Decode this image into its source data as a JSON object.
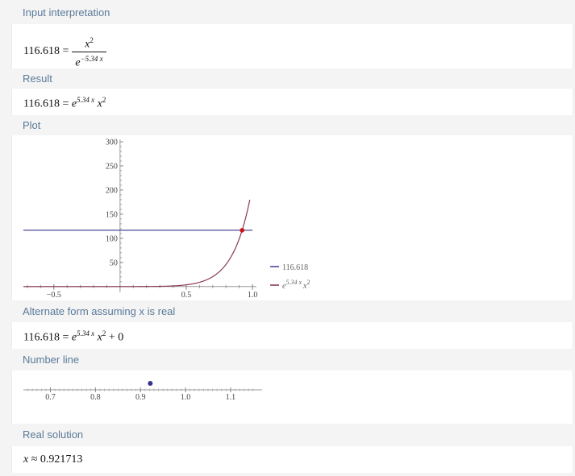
{
  "pods": {
    "input": {
      "title": "Input interpretation",
      "lhs": "116.618 =",
      "numerator_var": "x",
      "numerator_exp": "2",
      "denominator_base": "e",
      "denominator_exp": "−5.34 x"
    },
    "result": {
      "title": "Result",
      "lhs": "116.618 =",
      "base": "e",
      "exp": "5.34 x",
      "var": "x",
      "var_exp": "2"
    },
    "plot": {
      "title": "Plot"
    },
    "alternate": {
      "title": "Alternate form assuming x is real",
      "lhs": "116.618 =",
      "base": "e",
      "exp": "5.34 x",
      "var": "x",
      "var_exp": "2",
      "tail": " + 0"
    },
    "numberline": {
      "title": "Number line"
    },
    "solution": {
      "title": "Real solution",
      "var": "x",
      "approx": " ≈ 0.921713"
    }
  },
  "chart_data": [
    {
      "type": "line",
      "xlim": [
        -0.73,
        1.03
      ],
      "ylim": [
        -12,
        305
      ],
      "x_ticks": [
        {
          "value": -0.5,
          "label": "−0.5"
        },
        {
          "value": 0.5,
          "label": "0.5"
        },
        {
          "value": 1.0,
          "label": "1.0"
        }
      ],
      "y_ticks": [
        {
          "value": 50,
          "label": "50"
        },
        {
          "value": 100,
          "label": "100"
        },
        {
          "value": 150,
          "label": "150"
        },
        {
          "value": 200,
          "label": "200"
        },
        {
          "value": 250,
          "label": "250"
        },
        {
          "value": 300,
          "label": "300"
        }
      ],
      "series": [
        {
          "name": "116.618",
          "color": "#4a4a9a",
          "kind": "constant",
          "value": 116.618,
          "x_range": [
            -0.73,
            1.0
          ]
        },
        {
          "name": "e^(5.34 x) x^2",
          "color": "#8a3a5a",
          "kind": "function",
          "x_range": [
            -0.73,
            0.98
          ]
        }
      ],
      "legend": {
        "position": "right",
        "entries": [
          {
            "label": "116.618",
            "color": "#4a4a9a"
          },
          {
            "base": "e",
            "exp": "5.34 x",
            "var": "x",
            "var_exp": "2",
            "color": "#8a3a5a"
          }
        ]
      },
      "intersection": {
        "x": 0.921713,
        "y": 116.618,
        "color": "#d01010"
      }
    },
    {
      "type": "scatter",
      "xlim": [
        0.64,
        1.17
      ],
      "x_ticks": [
        {
          "value": 0.7,
          "label": "0.7"
        },
        {
          "value": 0.8,
          "label": "0.8"
        },
        {
          "value": 0.9,
          "label": "0.9"
        },
        {
          "value": 1.0,
          "label": "1.0"
        },
        {
          "value": 1.1,
          "label": "1.1"
        }
      ],
      "points": [
        {
          "x": 0.921713,
          "color": "#33338a"
        }
      ]
    }
  ]
}
